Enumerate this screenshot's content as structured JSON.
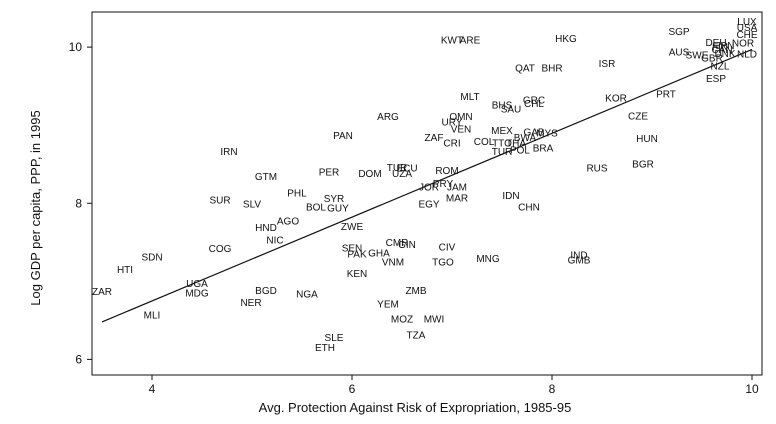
{
  "chart_data": {
    "type": "scatter",
    "title": "",
    "xlabel": "Avg. Protection Against Risk of Expropriation, 1985-95",
    "ylabel": "Log GDP per capita, PPP, in 1995",
    "xlim": [
      3.4,
      10.1
    ],
    "ylim": [
      5.8,
      10.45
    ],
    "xticks": [
      4,
      6,
      8,
      10
    ],
    "yticks": [
      6,
      8,
      10
    ],
    "grid": false,
    "legend": "none",
    "marker": "country-code text labels",
    "fit_line": {
      "x": [
        3.5,
        10.0
      ],
      "y": [
        6.48,
        9.97
      ]
    },
    "points": [
      {
        "label": "ZAR",
        "x": 3.5,
        "y": 6.87
      },
      {
        "label": "HTI",
        "x": 3.73,
        "y": 7.15
      },
      {
        "label": "SDN",
        "x": 4.0,
        "y": 7.31
      },
      {
        "label": "MLI",
        "x": 4.0,
        "y": 6.57
      },
      {
        "label": "UGA",
        "x": 4.45,
        "y": 6.97
      },
      {
        "label": "MDG",
        "x": 4.45,
        "y": 6.85
      },
      {
        "label": "NER",
        "x": 4.99,
        "y": 6.73
      },
      {
        "label": "BGD",
        "x": 5.14,
        "y": 6.88
      },
      {
        "label": "COG",
        "x": 4.68,
        "y": 7.42
      },
      {
        "label": "NIC",
        "x": 5.23,
        "y": 7.53
      },
      {
        "label": "HND",
        "x": 5.14,
        "y": 7.69
      },
      {
        "label": "AGO",
        "x": 5.36,
        "y": 7.77
      },
      {
        "label": "SUR",
        "x": 4.68,
        "y": 8.04
      },
      {
        "label": "SLV",
        "x": 5.0,
        "y": 7.99
      },
      {
        "label": "IRN",
        "x": 4.77,
        "y": 8.66
      },
      {
        "label": "GTM",
        "x": 5.14,
        "y": 8.34
      },
      {
        "label": "PHL",
        "x": 5.45,
        "y": 8.13
      },
      {
        "label": "BOL",
        "x": 5.64,
        "y": 7.95
      },
      {
        "label": "SYR",
        "x": 5.82,
        "y": 8.06
      },
      {
        "label": "GUY",
        "x": 5.86,
        "y": 7.94
      },
      {
        "label": "NGA",
        "x": 5.55,
        "y": 6.84
      },
      {
        "label": "PAN",
        "x": 5.91,
        "y": 8.87
      },
      {
        "label": "PER",
        "x": 5.77,
        "y": 8.4
      },
      {
        "label": "ZWE",
        "x": 6.0,
        "y": 7.7
      },
      {
        "label": "KEN",
        "x": 6.05,
        "y": 7.1
      },
      {
        "label": "SEN",
        "x": 6.0,
        "y": 7.43
      },
      {
        "label": "PAK",
        "x": 6.05,
        "y": 7.35
      },
      {
        "label": "GHA",
        "x": 6.27,
        "y": 7.36
      },
      {
        "label": "VNM",
        "x": 6.41,
        "y": 7.25
      },
      {
        "label": "CMR",
        "x": 6.45,
        "y": 7.5
      },
      {
        "label": "GIN",
        "x": 6.55,
        "y": 7.47
      },
      {
        "label": "SLE",
        "x": 5.82,
        "y": 6.28
      },
      {
        "label": "ETH",
        "x": 5.73,
        "y": 6.15
      },
      {
        "label": "YEM",
        "x": 6.36,
        "y": 6.71
      },
      {
        "label": "MOZ",
        "x": 6.5,
        "y": 6.52
      },
      {
        "label": "MWI",
        "x": 6.82,
        "y": 6.52
      },
      {
        "label": "TZA",
        "x": 6.64,
        "y": 6.31
      },
      {
        "label": "ZMB",
        "x": 6.64,
        "y": 6.88
      },
      {
        "label": "TGO",
        "x": 6.91,
        "y": 7.25
      },
      {
        "label": "CIV",
        "x": 6.95,
        "y": 7.44
      },
      {
        "label": "MNG",
        "x": 7.36,
        "y": 7.29
      },
      {
        "label": "ARG",
        "x": 6.36,
        "y": 9.11
      },
      {
        "label": "DOM",
        "x": 6.18,
        "y": 8.38
      },
      {
        "label": "TUR",
        "x": 6.45,
        "y": 8.46
      },
      {
        "label": "ECU",
        "x": 6.55,
        "y": 8.45
      },
      {
        "label": "UZA",
        "x": 6.5,
        "y": 8.38
      },
      {
        "label": "ZAF",
        "x": 6.82,
        "y": 8.84
      },
      {
        "label": "CRI",
        "x": 7.0,
        "y": 8.77
      },
      {
        "label": "URY",
        "x": 7.0,
        "y": 9.04
      },
      {
        "label": "VEN",
        "x": 7.09,
        "y": 8.95
      },
      {
        "label": "OMN",
        "x": 7.09,
        "y": 9.11
      },
      {
        "label": "MLT",
        "x": 7.18,
        "y": 9.37
      },
      {
        "label": "KWT",
        "x": 7.0,
        "y": 10.09
      },
      {
        "label": "ARE",
        "x": 7.18,
        "y": 10.09
      },
      {
        "label": "JOR",
        "x": 6.77,
        "y": 8.21
      },
      {
        "label": "PRY",
        "x": 6.91,
        "y": 8.25
      },
      {
        "label": "JAM",
        "x": 7.05,
        "y": 8.21
      },
      {
        "label": "MAR",
        "x": 7.05,
        "y": 8.07
      },
      {
        "label": "EGY",
        "x": 6.77,
        "y": 7.99
      },
      {
        "label": "ROM",
        "x": 6.95,
        "y": 8.42
      },
      {
        "label": "COL",
        "x": 7.32,
        "y": 8.79
      },
      {
        "label": "MEX",
        "x": 7.5,
        "y": 8.93
      },
      {
        "label": "TTO",
        "x": 7.5,
        "y": 8.77
      },
      {
        "label": "THA",
        "x": 7.64,
        "y": 8.77
      },
      {
        "label": "TUR",
        "x": 7.5,
        "y": 8.66
      },
      {
        "label": "POL",
        "x": 7.68,
        "y": 8.68
      },
      {
        "label": "BRA",
        "x": 7.91,
        "y": 8.71
      },
      {
        "label": "BWA",
        "x": 7.73,
        "y": 8.84
      },
      {
        "label": "GAB",
        "x": 7.82,
        "y": 8.91
      },
      {
        "label": "MYS",
        "x": 7.95,
        "y": 8.9
      },
      {
        "label": "IDN",
        "x": 7.59,
        "y": 8.1
      },
      {
        "label": "CHN",
        "x": 7.77,
        "y": 7.95
      },
      {
        "label": "BHS",
        "x": 7.5,
        "y": 9.26
      },
      {
        "label": "SAU",
        "x": 7.59,
        "y": 9.21
      },
      {
        "label": "GRC",
        "x": 7.82,
        "y": 9.32
      },
      {
        "label": "CHL",
        "x": 7.82,
        "y": 9.28
      },
      {
        "label": "QAT",
        "x": 7.73,
        "y": 9.73
      },
      {
        "label": "BHR",
        "x": 8.0,
        "y": 9.73
      },
      {
        "label": "HKG",
        "x": 8.14,
        "y": 10.11
      },
      {
        "label": "ISR",
        "x": 8.55,
        "y": 9.79
      },
      {
        "label": "KOR",
        "x": 8.64,
        "y": 9.35
      },
      {
        "label": "CZE",
        "x": 8.86,
        "y": 9.12
      },
      {
        "label": "PRT",
        "x": 9.14,
        "y": 9.4
      },
      {
        "label": "HUN",
        "x": 8.95,
        "y": 8.83
      },
      {
        "label": "BGR",
        "x": 8.91,
        "y": 8.5
      },
      {
        "label": "RUS",
        "x": 8.45,
        "y": 8.45
      },
      {
        "label": "IND",
        "x": 8.27,
        "y": 7.34
      },
      {
        "label": "GMB",
        "x": 8.27,
        "y": 7.27
      },
      {
        "label": "SGP",
        "x": 9.27,
        "y": 10.2
      },
      {
        "label": "AUS",
        "x": 9.27,
        "y": 9.94
      },
      {
        "label": "SWE",
        "x": 9.45,
        "y": 9.9
      },
      {
        "label": "ESP",
        "x": 9.64,
        "y": 9.6
      },
      {
        "label": "NZL",
        "x": 9.68,
        "y": 9.76
      },
      {
        "label": "FIN",
        "x": 9.68,
        "y": 10.0
      },
      {
        "label": "DEU",
        "x": 9.64,
        "y": 10.06
      },
      {
        "label": "JPN",
        "x": 9.73,
        "y": 10.02
      },
      {
        "label": "DNK",
        "x": 9.73,
        "y": 9.92
      },
      {
        "label": "CAN",
        "x": 9.7,
        "y": 9.97
      },
      {
        "label": "GBR",
        "x": 9.6,
        "y": 9.86
      },
      {
        "label": "NLD",
        "x": 9.95,
        "y": 9.91
      },
      {
        "label": "NOR",
        "x": 9.91,
        "y": 10.05
      },
      {
        "label": "CHE",
        "x": 9.95,
        "y": 10.16
      },
      {
        "label": "USA",
        "x": 9.95,
        "y": 10.25
      },
      {
        "label": "LUX",
        "x": 9.95,
        "y": 10.33
      }
    ]
  }
}
